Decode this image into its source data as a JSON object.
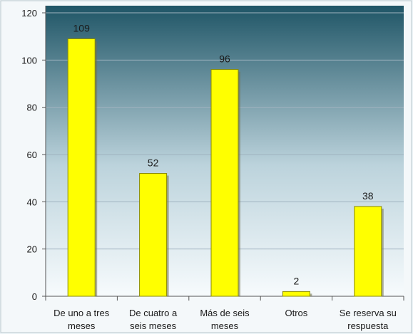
{
  "chart_data": {
    "type": "bar",
    "title": "",
    "xlabel": "",
    "ylabel": "",
    "categories": [
      [
        "De uno a tres",
        "meses"
      ],
      [
        "De cuatro a",
        "seis meses"
      ],
      [
        "Más de seis",
        "meses"
      ],
      [
        "Otros"
      ],
      [
        "Se reserva su",
        "respuesta"
      ]
    ],
    "values": [
      109,
      52,
      96,
      2,
      38
    ],
    "data_labels": [
      "109",
      "52",
      "96",
      "2",
      "38"
    ],
    "ylim": [
      0,
      120
    ],
    "yticks": [
      0,
      20,
      40,
      60,
      80,
      100,
      120
    ],
    "grid": true,
    "legend": "none",
    "colors": {
      "bar_fill": "#ffff00",
      "bar_edge": "#8a8a00",
      "bar_shadow": "#6f6f50",
      "plot_top": "#1f5566",
      "plot_bottom": "#f7fbfd",
      "grid": "#9fb3bf",
      "axis": "#555555",
      "text": "#1a1a1a"
    }
  }
}
